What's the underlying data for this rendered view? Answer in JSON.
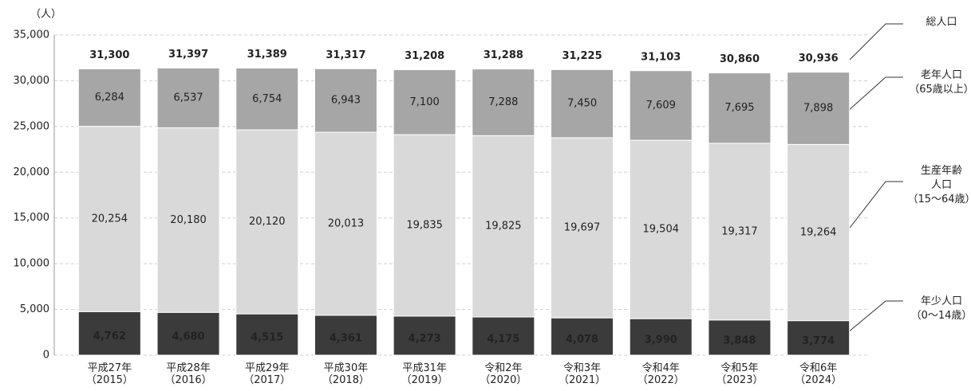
{
  "chart_data": {
    "type": "stacked_bar",
    "y_label": "（人）",
    "categories": [
      "平成27年\n（2015）",
      "平成28年\n（2016）",
      "平成29年\n（2017）",
      "平成30年\n（2018）",
      "平成31年\n（2019）",
      "令和2年\n（2020）",
      "令和3年\n（2021）",
      "令和4年\n（2022）",
      "令和5年\n（2023）",
      "令和6年\n（2024）"
    ],
    "series": [
      {
        "name": "年少人口\n（0～14歳）",
        "color": "#3b3b3b",
        "label_color": "#ffffff",
        "values": [
          4762,
          4680,
          4515,
          4361,
          4273,
          4175,
          4078,
          3990,
          3848,
          3774
        ],
        "value_labels": [
          "4,762",
          "4,680",
          "4,515",
          "4,361",
          "4,273",
          "4,175",
          "4,078",
          "3,990",
          "3,848",
          "3,774"
        ]
      },
      {
        "name": "生産年齢\n人口\n（15～64歳）",
        "color": "#d9d9d9",
        "label_color": "#222222",
        "values": [
          20254,
          20180,
          20120,
          20013,
          19835,
          19825,
          19697,
          19504,
          19317,
          19264
        ],
        "value_labels": [
          "20,254",
          "20,180",
          "20,120",
          "20,013",
          "19,835",
          "19,825",
          "19,697",
          "19,504",
          "19,317",
          "19,264"
        ]
      },
      {
        "name": "老年人口\n（65歳以上）",
        "color": "#a6a6a6",
        "label_color": "#222222",
        "values": [
          6284,
          6537,
          6754,
          6943,
          7100,
          7288,
          7450,
          7609,
          7695,
          7898
        ],
        "value_labels": [
          "6,284",
          "6,537",
          "6,754",
          "6,943",
          "7,100",
          "7,288",
          "7,450",
          "7,609",
          "7,695",
          "7,898"
        ]
      }
    ],
    "total": {
      "name": "総人口",
      "values": [
        31300,
        31397,
        31389,
        31317,
        31208,
        31288,
        31225,
        31103,
        30860,
        30936
      ],
      "value_labels": [
        "31,300",
        "31,397",
        "31,389",
        "31,317",
        "31,208",
        "31,288",
        "31,225",
        "31,103",
        "30,860",
        "30,936"
      ]
    },
    "ylim": [
      0,
      35000
    ],
    "yticks": [
      0,
      {
        "value": 5000,
        "label": "5,000"
      },
      {
        "value": 10000,
        "label": "10,000"
      },
      {
        "value": 15000,
        "label": "15,000"
      },
      {
        "value": 20000,
        "label": "20,000"
      },
      {
        "value": 25000,
        "label": "25,000"
      },
      {
        "value": 30000,
        "label": "30,000"
      },
      {
        "value": 35000,
        "label": "35,000"
      }
    ],
    "grid": true
  }
}
